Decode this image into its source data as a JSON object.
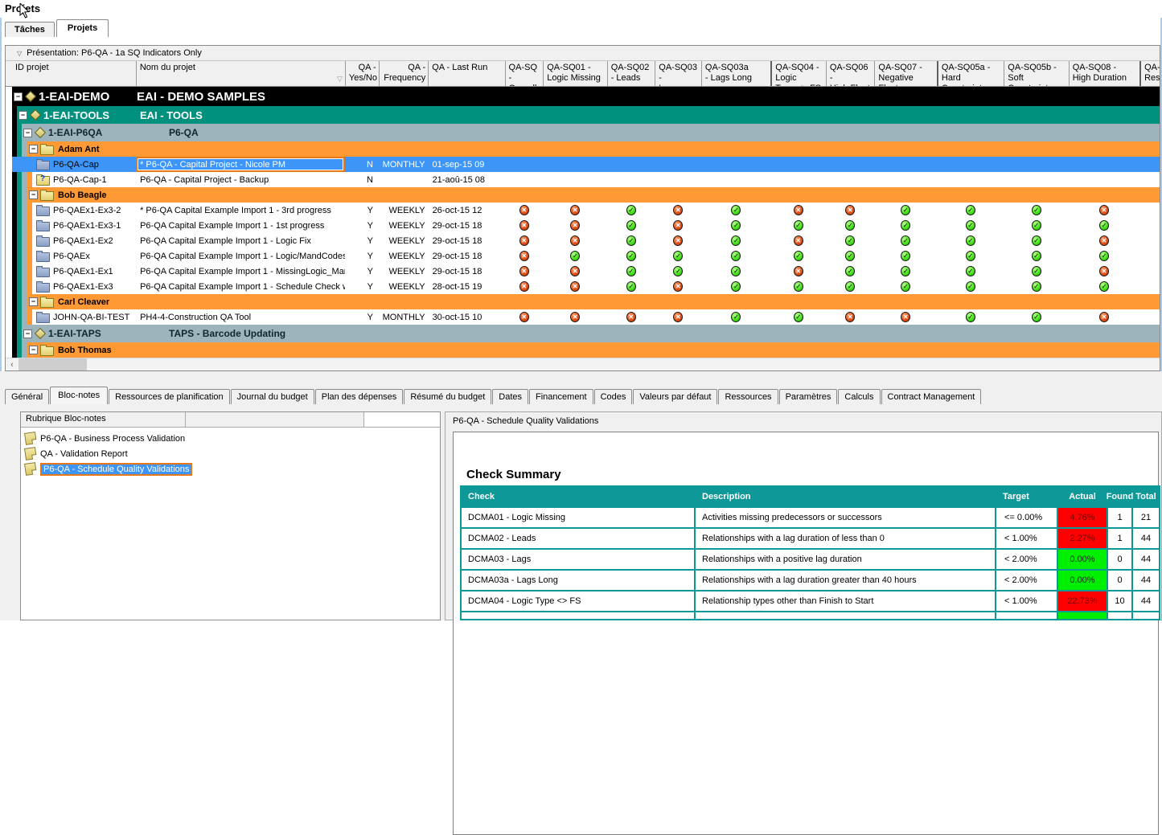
{
  "window": {
    "title": "Projets"
  },
  "main_tabs": [
    {
      "label": "Tâches",
      "active": false
    },
    {
      "label": "Projets",
      "active": true
    }
  ],
  "projects_table": {
    "presentation": "Présentation: P6-QA - 1a SQ Indicators Only",
    "columns": [
      "ID projet",
      "Nom du projet",
      "QA -\nYes/No",
      "QA -\nFrequency",
      "QA - Last Run",
      "QA-SQ -\nOverall",
      "QA-SQ01 -\nLogic Missing",
      "QA-SQ02\n- Leads",
      "QA-SQ03 -\nLags",
      "QA-SQ03a\n- Lags Long",
      "QA-SQ04 - Logic\nType <> FS",
      "QA-SQ06 -\nHigh Float",
      "QA-SQ07 -\nNegative Float",
      "QA-SQ05a -\nHard Constraint",
      "QA-SQ05b -\nSoft Constraint",
      "QA-SQ08 -\nHigh Duration",
      "QA-\nRes"
    ],
    "rows": [
      {
        "type": "group",
        "level": 1,
        "id": "1-EAI-DEMO",
        "name": "EAI - DEMO SAMPLES"
      },
      {
        "type": "group",
        "level": 2,
        "id": "1-EAI-TOOLS",
        "name": "EAI - TOOLS"
      },
      {
        "type": "group",
        "level": 3,
        "id": "1-EAI-P6QA",
        "name": "P6-QA"
      },
      {
        "type": "person",
        "name": "Adam Ant"
      },
      {
        "type": "project",
        "selected": true,
        "icon": "folder",
        "id": "P6-QA-Cap",
        "name": "* P6-QA - Capital Project - Nicole PM",
        "yesno": "N",
        "frequency": "MONTHLY",
        "last_run": "01-sep-15 09",
        "icons": [
          "",
          "",
          "",
          "",
          "",
          "",
          "",
          "",
          "",
          "",
          ""
        ]
      },
      {
        "type": "project",
        "icon": "folder-question",
        "id": "P6-QA-Cap-1",
        "name": "P6-QA - Capital Project - Backup",
        "yesno": "N",
        "frequency": "",
        "last_run": "21-aoû-15 08",
        "icons": [
          "",
          "",
          "",
          "",
          "",
          "",
          "",
          "",
          "",
          "",
          ""
        ]
      },
      {
        "type": "person",
        "name": "Bob Beagle"
      },
      {
        "type": "project",
        "icon": "folder",
        "id": "P6-QAEx1-Ex3-2",
        "name": "* P6-QA Capital Example Import 1 - 3rd progress",
        "yesno": "Y",
        "frequency": "WEEKLY",
        "last_run": "26-oct-15 12",
        "icons": [
          "x",
          "x",
          "ok",
          "x",
          "ok",
          "x",
          "x",
          "ok",
          "ok",
          "ok",
          "x"
        ]
      },
      {
        "type": "project",
        "icon": "folder",
        "id": "P6-QAEx1-Ex3-1",
        "name": "P6-QA Capital Example Import 1 - 1st progress",
        "yesno": "Y",
        "frequency": "WEEKLY",
        "last_run": "29-oct-15 18",
        "icons": [
          "x",
          "x",
          "ok",
          "x",
          "ok",
          "ok",
          "ok",
          "ok",
          "ok",
          "ok",
          "ok"
        ]
      },
      {
        "type": "project",
        "icon": "folder",
        "id": "P6-QAEx1-Ex2",
        "name": "P6-QA Capital Example Import 1 - Logic Fix",
        "yesno": "Y",
        "frequency": "WEEKLY",
        "last_run": "29-oct-15 18",
        "icons": [
          "x",
          "x",
          "ok",
          "x",
          "ok",
          "x",
          "ok",
          "ok",
          "ok",
          "ok",
          "x"
        ]
      },
      {
        "type": "project",
        "icon": "folder",
        "id": "P6-QAEx",
        "name": "P6-QA Capital Example Import 1 - Logic/MandCodes/",
        "yesno": "Y",
        "frequency": "WEEKLY",
        "last_run": "29-oct-15 18",
        "icons": [
          "x",
          "ok",
          "ok",
          "ok",
          "ok",
          "ok",
          "ok",
          "ok",
          "ok",
          "ok",
          "ok"
        ]
      },
      {
        "type": "project",
        "icon": "folder",
        "id": "P6-QAEx1-Ex1",
        "name": "P6-QA Capital Example Import 1 - MissingLogic_Mand",
        "yesno": "Y",
        "frequency": "WEEKLY",
        "last_run": "29-oct-15 18",
        "icons": [
          "x",
          "x",
          "ok",
          "ok",
          "ok",
          "x",
          "ok",
          "ok",
          "ok",
          "ok",
          "x"
        ]
      },
      {
        "type": "project",
        "icon": "folder",
        "id": "P6-QAEx1-Ex3",
        "name": "P6-QA Capital Example Import 1 - Schedule Check wil",
        "yesno": "Y",
        "frequency": "WEEKLY",
        "last_run": "28-oct-15 19",
        "icons": [
          "x",
          "x",
          "ok",
          "x",
          "ok",
          "ok",
          "ok",
          "ok",
          "ok",
          "ok",
          "ok"
        ]
      },
      {
        "type": "person",
        "name": "Carl Cleaver"
      },
      {
        "type": "project",
        "icon": "folder",
        "id": "JOHN-QA-BI-TEST",
        "name": "PH4-4-Construction QA Tool",
        "yesno": "Y",
        "frequency": "MONTHLY",
        "last_run": "30-oct-15 10",
        "icons": [
          "x",
          "x",
          "x",
          "x",
          "ok",
          "ok",
          "x",
          "x",
          "ok",
          "ok",
          "x"
        ]
      },
      {
        "type": "group",
        "level": 3,
        "id": "1-EAI-TAPS",
        "name": "TAPS - Barcode Updating"
      },
      {
        "type": "person",
        "name": "Bob Thomas"
      },
      {
        "type": "project",
        "partial": true,
        "icon": "folder",
        "id": "",
        "name": "",
        "yesno": "",
        "frequency": "",
        "last_run": "",
        "icons": [
          "x",
          "x",
          "ok",
          "ok",
          "ok",
          "x",
          "ok",
          "x",
          "ok",
          "ok",
          "x"
        ]
      }
    ]
  },
  "scrollbar": {
    "left_arrow": "‹"
  },
  "details": {
    "tabs": [
      "Général",
      "Bloc-notes",
      "Ressources de planification",
      "Journal du budget",
      "Plan des dépenses",
      "Résumé du budget",
      "Dates",
      "Financement",
      "Codes",
      "Valeurs par défaut",
      "Ressources",
      "Paramètres",
      "Calculs",
      "Contract Management"
    ],
    "active_tab": "Bloc-notes",
    "notebook": {
      "header": "Rubrique Bloc-notes",
      "items": [
        {
          "label": "P6-QA - Business Process Validation",
          "selected": false
        },
        {
          "label": "QA - Validation Report",
          "selected": false
        },
        {
          "label": "P6-QA - Schedule Quality Validations",
          "selected": true
        }
      ]
    },
    "report": {
      "panel_title": "P6-QA - Schedule Quality Validations",
      "heading": "Check Summary",
      "columns": [
        "Check",
        "Description",
        "Target",
        "Actual",
        "Found",
        "Total"
      ],
      "rows": [
        {
          "check": "DCMA01 - Logic Missing",
          "description": "Activities missing predecessors or successors",
          "target": "<= 0.00%",
          "actual": "4.76%",
          "status": "red",
          "found": "1",
          "total": "21"
        },
        {
          "check": "DCMA02 - Leads",
          "description": "Relationships with a lag duration of less than 0",
          "target": "< 1.00%",
          "actual": "2.27%",
          "status": "red",
          "found": "1",
          "total": "44"
        },
        {
          "check": "DCMA03 - Lags",
          "description": "Relationships with a positive lag duration",
          "target": "< 2.00%",
          "actual": "0.00%",
          "status": "green",
          "found": "0",
          "total": "44"
        },
        {
          "check": "DCMA03a - Lags Long",
          "description": "Relationships with a lag duration greater than 40 hours",
          "target": "< 2.00%",
          "actual": "0.00%",
          "status": "green",
          "found": "0",
          "total": "44"
        },
        {
          "check": "DCMA04 - Logic Type <> FS",
          "description": "Relationship types other than Finish to Start",
          "target": "< 1.00%",
          "actual": "22.73%",
          "status": "red",
          "found": "10",
          "total": "44"
        },
        {
          "check": "",
          "description": "",
          "target": "",
          "actual": "",
          "status": "green",
          "found": "",
          "total": "",
          "partial": true
        }
      ]
    }
  },
  "colors": {
    "band_black": "#000000",
    "band_teal": "#00907E",
    "band_gray": "#9EB4BC",
    "band_orange": "#FF9933",
    "selection_blue": "#3D96F7",
    "selection_border": "#E87817",
    "report_header_teal": "#0F9898",
    "status_red": "#FF0000",
    "status_green": "#00EE00"
  }
}
